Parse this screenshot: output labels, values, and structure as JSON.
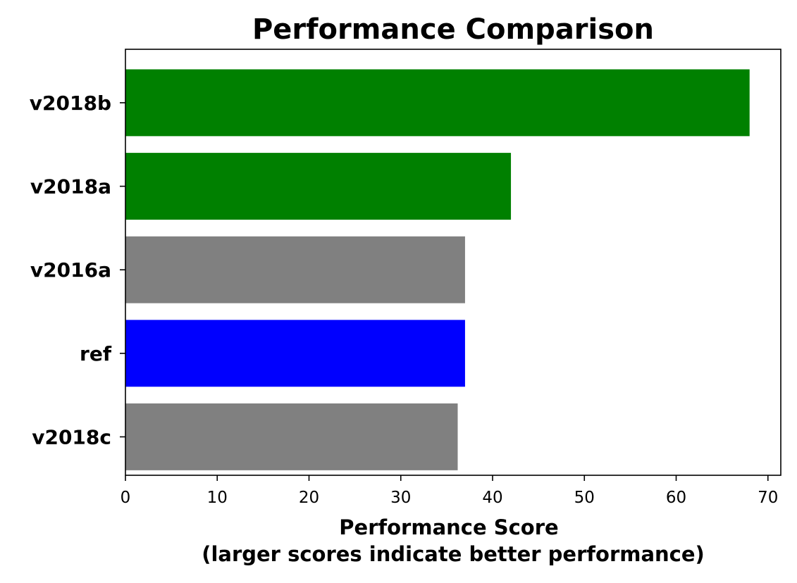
{
  "chart_data": {
    "type": "bar",
    "orientation": "horizontal",
    "title": "Performance Comparison",
    "xlabel_line1": "Performance Score",
    "xlabel_line2": "(larger scores indicate better performance)",
    "ylabel": "",
    "categories": [
      "v2018b",
      "v2018a",
      "v2016a",
      "ref",
      "v2018c"
    ],
    "values": [
      68,
      42,
      37,
      37,
      36.2
    ],
    "bar_colors": [
      "#008000",
      "#008000",
      "#808080",
      "#0000ff",
      "#808080"
    ],
    "xlim": [
      0,
      71.4
    ],
    "xticks": [
      0,
      10,
      20,
      30,
      40,
      50,
      60,
      70
    ],
    "grid": false,
    "legend": "none"
  }
}
